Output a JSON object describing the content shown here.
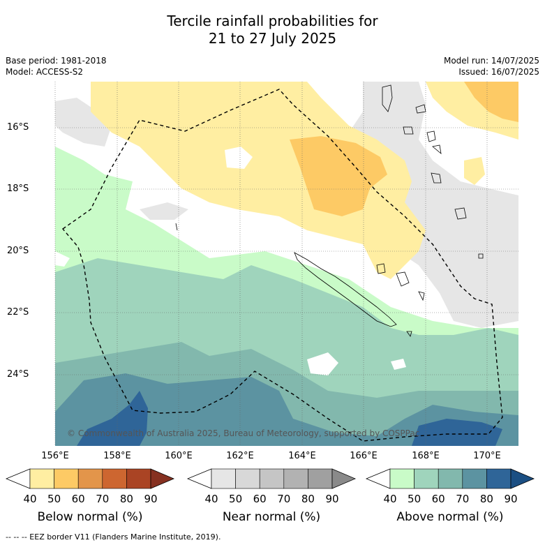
{
  "title_line1": "Tercile rainfall probabilities for",
  "title_line2": "21 to 27 July 2025",
  "base_period": "Base period: 1981-2018",
  "model": "Model: ACCESS-S2",
  "model_run": "Model run: 14/07/2025",
  "issued": "Issued: 16/07/2025",
  "credit": "© Commonwealth of Australia 2025, Bureau of Meteorology, supported by COSPPac",
  "lat_labels": [
    "16°S",
    "18°S",
    "20°S",
    "22°S",
    "24°S"
  ],
  "lon_labels": [
    "156°E",
    "158°E",
    "160°E",
    "162°E",
    "164°E",
    "166°E",
    "168°E",
    "170°E"
  ],
  "legend": {
    "below": {
      "label": "Below normal (%)",
      "ticks": [
        "40",
        "50",
        "60",
        "70",
        "80",
        "90"
      ],
      "colors": [
        "#ffeea2",
        "#fdca65",
        "#e3954a",
        "#cd6630",
        "#aa4424",
        "#863121"
      ]
    },
    "near": {
      "label": "Near normal (%)",
      "ticks": [
        "40",
        "50",
        "60",
        "70",
        "80",
        "90"
      ],
      "colors": [
        "#e6e6e6",
        "#d8d8d8",
        "#c5c5c5",
        "#b2b2b2",
        "#a0a0a0",
        "#8a8a8a"
      ]
    },
    "above": {
      "label": "Above normal (%)",
      "ticks": [
        "40",
        "50",
        "60",
        "70",
        "80",
        "90"
      ],
      "colors": [
        "#c9fbc8",
        "#9fd4bc",
        "#82b8ad",
        "#5c93a1",
        "#2f6598",
        "#1b4f83"
      ]
    }
  },
  "footer": "-- -- -- EEZ border V11 (Flanders Marine Institute, 2019)."
}
